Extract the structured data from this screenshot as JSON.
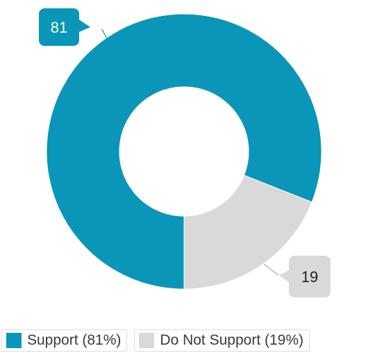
{
  "chart_data": {
    "type": "pie",
    "donut": true,
    "title": "",
    "series": [
      {
        "name": "Support",
        "value": 81,
        "color": "#0a96b8",
        "label_color": "#ffffff",
        "legend": "Support (81%)"
      },
      {
        "name": "Do Not Support",
        "value": 19,
        "color": "#d9d9d9",
        "label_color": "#222222",
        "legend": "Do Not Support (19%)"
      }
    ],
    "legend_placement": "bottom"
  }
}
